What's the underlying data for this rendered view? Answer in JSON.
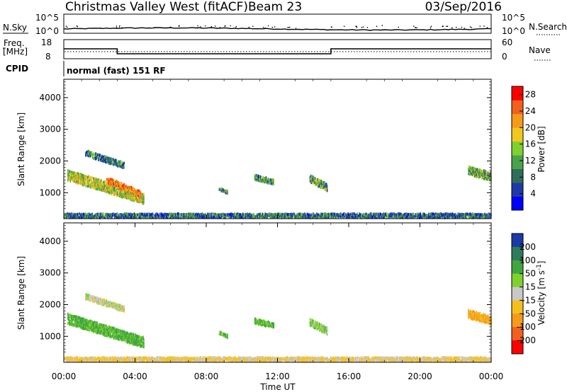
{
  "header": {
    "station": "Christmas Valley West (fitACF)",
    "beam": "Beam 23",
    "date": "03/Sep/2016"
  },
  "noise_panel": {
    "left_label": "N.Sky",
    "left_ticks": [
      "10^5",
      "10^0"
    ],
    "right_label": "N.Search",
    "right_ticks": [
      "10^5",
      "10^0"
    ]
  },
  "freq_panel": {
    "label_top": "Freq.",
    "label_unit": "[MHz]",
    "left_ticks": [
      "18",
      "8"
    ],
    "right_label": "Nave",
    "right_ticks": [
      "60",
      "0"
    ]
  },
  "cpid": {
    "label": "CPID",
    "text": "normal (fast) 151 RF"
  },
  "chart_data": [
    {
      "type": "heatmap",
      "parameter": "Power",
      "ylabel": "Slant Range [km]",
      "xlabel": "Time UT",
      "x_ticks": [
        "00:00",
        "04:00",
        "08:00",
        "12:00",
        "16:00",
        "20:00",
        "00:00"
      ],
      "xlim_hours": [
        0,
        24
      ],
      "y_ticks": [
        1000,
        2000,
        3000,
        4000
      ],
      "ylim_km": [
        180,
        4580
      ],
      "colorbar": {
        "label": "Power [dB]",
        "ticks": [
          4,
          8,
          12,
          16,
          20,
          24,
          28
        ],
        "range": [
          0,
          30
        ],
        "colors": [
          "#0000ff",
          "#1f3aa8",
          "#2e6e5a",
          "#4aa34a",
          "#7fd12e",
          "#f2c81e",
          "#f59a1a",
          "#f2601e",
          "#ff0000"
        ]
      },
      "echo_regions": [
        {
          "t0": 0.2,
          "t1": 4.5,
          "r_start": 1550,
          "r_end": 800,
          "width": 330,
          "value": 16
        },
        {
          "t0": 2.4,
          "t1": 4.3,
          "r_start": 1400,
          "r_end": 950,
          "width": 200,
          "value": 22
        },
        {
          "t0": 1.2,
          "t1": 3.4,
          "r_start": 2250,
          "r_end": 1850,
          "width": 180,
          "value": 8
        },
        {
          "t0": 8.7,
          "t1": 9.2,
          "r_start": 1120,
          "r_end": 1000,
          "width": 110,
          "value": 10
        },
        {
          "t0": 10.7,
          "t1": 11.8,
          "r_start": 1480,
          "r_end": 1330,
          "width": 160,
          "value": 10
        },
        {
          "t0": 13.8,
          "t1": 14.8,
          "r_start": 1450,
          "r_end": 1150,
          "width": 230,
          "value": 11
        },
        {
          "t0": 22.7,
          "t1": 24.0,
          "r_start": 1700,
          "r_end": 1500,
          "width": 260,
          "value": 13
        },
        {
          "t0": 0.0,
          "t1": 24.0,
          "r_start": 270,
          "r_end": 270,
          "width": 130,
          "value": 8
        }
      ]
    },
    {
      "type": "heatmap",
      "parameter": "Velocity",
      "ylabel": "Slant Range [km]",
      "xlabel": "Time UT",
      "x_ticks": [
        "00:00",
        "04:00",
        "08:00",
        "12:00",
        "16:00",
        "20:00",
        "00:00"
      ],
      "xlim_hours": [
        0,
        24
      ],
      "y_ticks": [
        1000,
        2000,
        3000,
        4000
      ],
      "ylim_km": [
        180,
        4580
      ],
      "colorbar": {
        "label": "Velocity [m s^-1]",
        "ticks": [
          200,
          100,
          50,
          15,
          -15,
          -50,
          -100,
          -200
        ],
        "colors": [
          "#1a3aa6",
          "#2e7a5c",
          "#3fa63f",
          "#7fd12e",
          "#c8c8c8",
          "#f5c01e",
          "#f59a1a",
          "#f2601e",
          "#ff0000"
        ]
      },
      "echo_regions": [
        {
          "t0": 0.2,
          "t1": 4.5,
          "r_start": 1550,
          "r_end": 800,
          "width": 330,
          "value": 60
        },
        {
          "t0": 1.2,
          "t1": 3.4,
          "r_start": 2250,
          "r_end": 1850,
          "width": 180,
          "value": 0
        },
        {
          "t0": 8.7,
          "t1": 9.2,
          "r_start": 1120,
          "r_end": 1000,
          "width": 110,
          "value": 40
        },
        {
          "t0": 10.7,
          "t1": 11.8,
          "r_start": 1480,
          "r_end": 1330,
          "width": 160,
          "value": 50
        },
        {
          "t0": 13.8,
          "t1": 14.8,
          "r_start": 1450,
          "r_end": 1150,
          "width": 230,
          "value": 30
        },
        {
          "t0": 22.7,
          "t1": 24.0,
          "r_start": 1700,
          "r_end": 1500,
          "width": 260,
          "value": -60
        },
        {
          "t0": 0.0,
          "t1": 24.0,
          "r_start": 270,
          "r_end": 270,
          "width": 130,
          "value": -20
        }
      ]
    }
  ],
  "freq_series": {
    "hours": [
      0,
      3,
      3,
      15,
      15,
      24
    ],
    "mhz": [
      13.2,
      13.2,
      10.6,
      10.6,
      13.2,
      13.2
    ]
  },
  "axis_texts": {
    "time_label": "Time UT"
  }
}
